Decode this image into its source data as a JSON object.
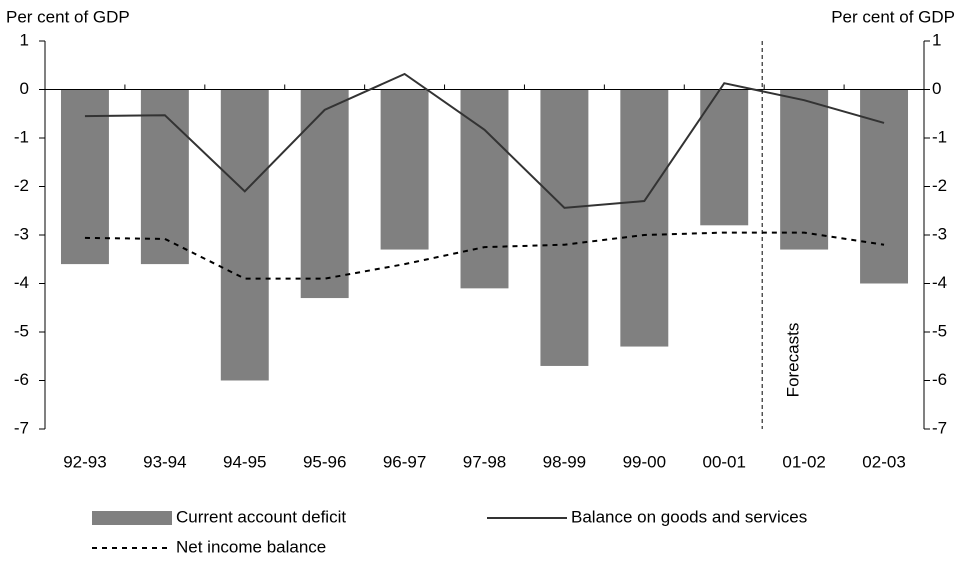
{
  "chart_data": {
    "type": "bar_line",
    "y_label": "Per cent of GDP",
    "y2_label": "Per cent of GDP",
    "annotation": "Forecasts",
    "categories": [
      "92-93",
      "93-94",
      "94-95",
      "95-96",
      "96-97",
      "97-98",
      "98-99",
      "99-00",
      "00-01",
      "01-02",
      "02-03"
    ],
    "series": [
      {
        "name": "Current account deficit",
        "type": "bar",
        "color": "#808080",
        "values": [
          -3.6,
          -3.6,
          -6.0,
          -4.3,
          -3.3,
          -4.1,
          -5.7,
          -5.3,
          -2.8,
          -3.3,
          -4.0
        ]
      },
      {
        "name": "Balance on goods and services",
        "type": "line",
        "color": "#333333",
        "dash": "solid",
        "values": [
          -0.55,
          -0.53,
          -2.1,
          -0.42,
          0.32,
          -0.83,
          -2.44,
          -2.3,
          0.13,
          -0.22,
          -0.69
        ]
      },
      {
        "name": "Net income balance",
        "type": "line",
        "color": "#000000",
        "dash": "dashed",
        "values": [
          -3.06,
          -3.08,
          -3.9,
          -3.9,
          -3.6,
          -3.25,
          -3.2,
          -3.0,
          -2.95,
          -2.95,
          -3.2
        ]
      }
    ],
    "ylim": [
      -7,
      1
    ],
    "yticks": [
      1,
      0,
      -1,
      -2,
      -3,
      -4,
      -5,
      -6,
      -7
    ],
    "y2lim": [
      -7,
      1
    ],
    "y2ticks": [
      1,
      0,
      -1,
      -2,
      -3,
      -4,
      -5,
      -6,
      -7
    ],
    "grid": false
  }
}
